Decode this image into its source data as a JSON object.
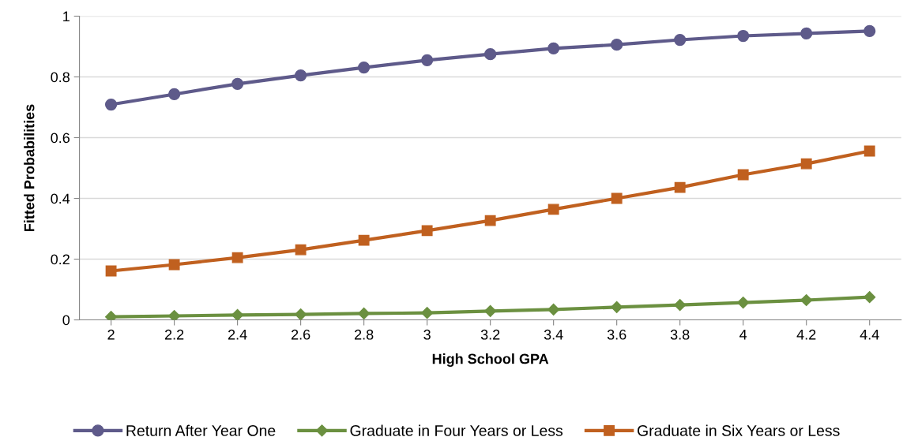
{
  "chart_data": {
    "type": "line",
    "xlabel": "High School GPA",
    "ylabel": "Fitted Probabilities",
    "categories": [
      "2",
      "2.2",
      "2.4",
      "2.6",
      "2.8",
      "3",
      "3.2",
      "3.4",
      "3.6",
      "3.8",
      "4",
      "4.2",
      "4.4"
    ],
    "series": [
      {
        "name": "Return After Year One",
        "color": "#5e5a8a",
        "marker": "circle",
        "values": [
          0.709,
          0.743,
          0.777,
          0.805,
          0.831,
          0.855,
          0.875,
          0.894,
          0.906,
          0.922,
          0.935,
          0.943,
          0.951
        ]
      },
      {
        "name": "Graduate in Four Years or Less",
        "color": "#6b9040",
        "marker": "diamond",
        "values": [
          0.01,
          0.013,
          0.016,
          0.018,
          0.021,
          0.023,
          0.029,
          0.034,
          0.042,
          0.049,
          0.057,
          0.065,
          0.075
        ]
      },
      {
        "name": "Graduate in Six Years or Less",
        "color": "#c0601f",
        "marker": "square",
        "values": [
          0.161,
          0.182,
          0.205,
          0.231,
          0.262,
          0.294,
          0.327,
          0.364,
          0.4,
          0.436,
          0.478,
          0.514,
          0.556
        ]
      }
    ],
    "ylim": [
      0,
      1
    ],
    "yticks": [
      0,
      0.2,
      0.4,
      0.6,
      0.8,
      1
    ],
    "grid": "y",
    "legend": "bottom",
    "line_style": "solid"
  }
}
